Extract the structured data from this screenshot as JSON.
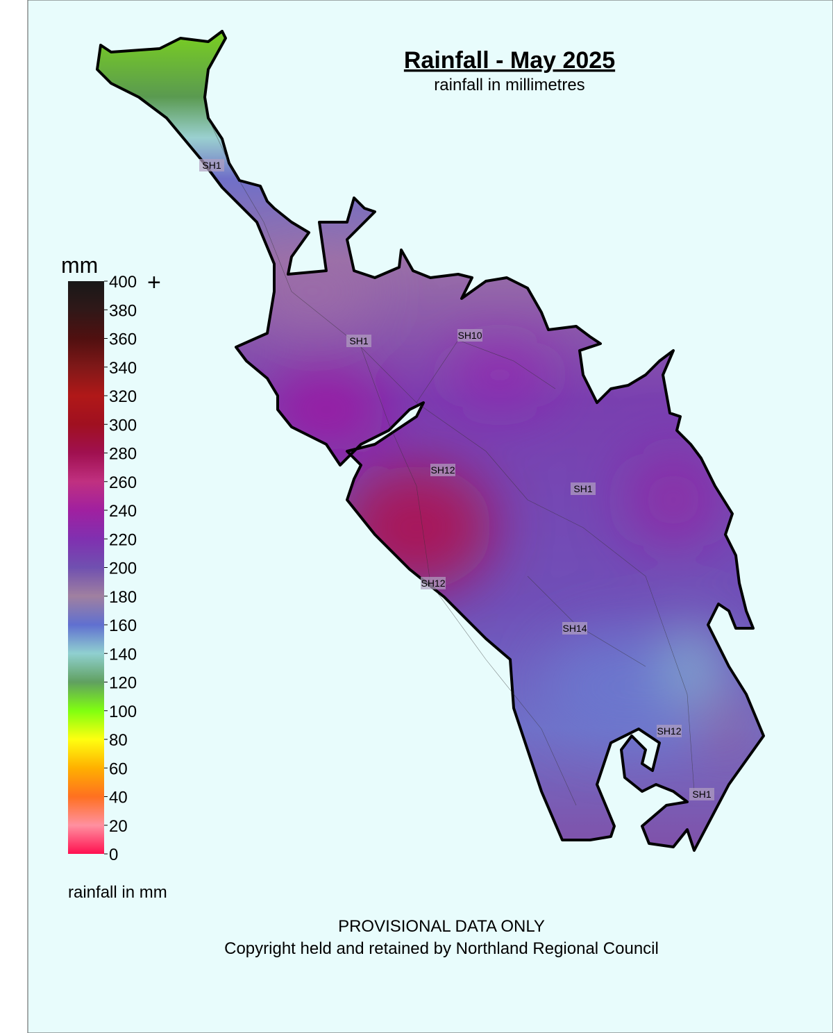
{
  "title": "Rainfall - May 2025",
  "subtitle": "rainfall in millimetres",
  "legend": {
    "unit": "mm",
    "ticks": [
      0,
      20,
      40,
      60,
      80,
      100,
      120,
      140,
      160,
      180,
      200,
      220,
      240,
      260,
      280,
      300,
      320,
      340,
      360,
      380,
      400
    ],
    "colors": [
      "#ff1050",
      "#ff90a0",
      "#ff7020",
      "#ffb000",
      "#ffff10",
      "#80ff10",
      "#60a060",
      "#90d0d0",
      "#6070d0",
      "#a080a0",
      "#7050b0",
      "#8030b0",
      "#a020a0",
      "#c03080",
      "#a01050",
      "#a01020",
      "#b01818",
      "#801818",
      "#501010",
      "#301818",
      "#181818"
    ],
    "plus": "+",
    "caption": "rainfall in mm"
  },
  "road_labels": [
    "SH1",
    "SH1",
    "SH10",
    "SH12",
    "SH1",
    "SH12",
    "SH14",
    "SH12",
    "SH1"
  ],
  "footer": {
    "notice": "PROVISIONAL DATA ONLY",
    "copyright": "Copyright held and retained by Northland Regional Council"
  }
}
